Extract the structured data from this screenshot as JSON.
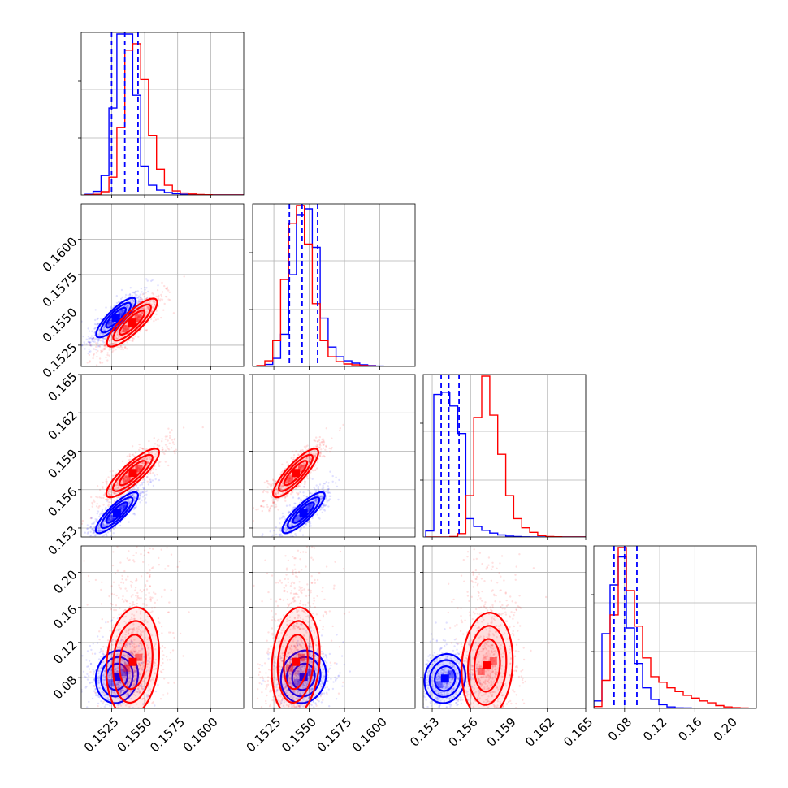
{
  "chart_data": {
    "type": "corner",
    "grid": true,
    "quantile_color": "#0000ff",
    "series": [
      {
        "color": "#0000ff"
      },
      {
        "color": "#ff0000"
      }
    ],
    "axes": [
      {
        "range": [
          0.1502,
          0.1625
        ],
        "ticks": [
          0.1525,
          0.155,
          0.1575,
          0.16
        ],
        "tick_labels": [
          "0.1525",
          "0.1550",
          "0.1575",
          "0.1600"
        ]
      },
      {
        "range": [
          0.151,
          0.1625
        ],
        "ticks": [
          0.1525,
          0.155,
          0.1575,
          0.16
        ],
        "tick_labels": [
          "0.1525",
          "0.1550",
          "0.1575",
          "0.1600"
        ]
      },
      {
        "range": [
          0.1523,
          0.165
        ],
        "ticks": [
          0.153,
          0.156,
          0.159,
          0.162,
          0.165
        ],
        "tick_labels": [
          "0.153",
          "0.156",
          "0.159",
          "0.162",
          "0.165"
        ]
      },
      {
        "range": [
          0.045,
          0.23
        ],
        "ticks": [
          0.08,
          0.12,
          0.16,
          0.2
        ],
        "tick_labels": [
          "0.08",
          "0.12",
          "0.16",
          "0.20"
        ]
      }
    ],
    "marginals": [
      {
        "quantiles": [
          0.1525,
          0.1535,
          0.1545
        ],
        "hist_range": [
          0.1505,
          0.1625
        ],
        "series": [
          [
            0.4,
            2.2,
            12,
            54,
            100,
            100,
            62,
            18,
            6,
            3,
            1.5,
            0.8,
            0.4,
            0.2,
            0.1,
            0.1,
            0.05,
            0.02,
            0.01,
            0.0
          ],
          [
            0.1,
            0.4,
            2.0,
            11,
            42,
            90,
            94,
            72,
            37,
            16,
            6,
            2.5,
            1.2,
            0.6,
            0.3,
            0.15,
            0.05,
            0.02,
            0.01,
            0.0
          ]
        ]
      },
      {
        "quantiles": [
          0.1536,
          0.1545,
          0.1556
        ],
        "hist_range": [
          0.1513,
          0.1625
        ],
        "series": [
          [
            0.2,
            1.2,
            5,
            20,
            57,
            94,
            98,
            74,
            30,
            12,
            6,
            3.5,
            2.0,
            1.0,
            0.5,
            0.2,
            0.1,
            0.05,
            0.02,
            0.0
          ],
          [
            0.5,
            3.5,
            16,
            54,
            89,
            100,
            76,
            39,
            16,
            6,
            3,
            1.5,
            1.0,
            0.5,
            0.3,
            0.1,
            0.05,
            0.02,
            0.01,
            0.0
          ]
        ]
      },
      {
        "quantiles": [
          0.1537,
          0.1543,
          0.1551
        ],
        "hist_range": [
          0.1525,
          0.165
        ],
        "series": [
          [
            2.6,
            62,
            63,
            57,
            45,
            8,
            4.6,
            2.9,
            1.7,
            0.9,
            0.4,
            0.2,
            0.08,
            0.03,
            0.01,
            0.0,
            0.0,
            0.0,
            0.0,
            0.0
          ],
          [
            0.0,
            0.0,
            0.0,
            0.2,
            1.5,
            18,
            52,
            70,
            53,
            36,
            18,
            8,
            4,
            2,
            0.6,
            0.2,
            0.1,
            0.05,
            0.02,
            0.0
          ]
        ]
      },
      {
        "quantiles": [
          0.068,
          0.08,
          0.094
        ],
        "hist_range": [
          0.045,
          0.23
        ],
        "series": [
          [
            4,
            40,
            66,
            81,
            43,
            24,
            11,
            4.8,
            2.0,
            0.8,
            0.3,
            0.2,
            0.1,
            0.0,
            0.0,
            0.0,
            0.0,
            0.0,
            0.0,
            0.0
          ],
          [
            1,
            15,
            50,
            86,
            63,
            44,
            27,
            17,
            14,
            11,
            9,
            7,
            5.5,
            4,
            3,
            1.5,
            0.8,
            0.4,
            0.2,
            0.1
          ]
        ]
      }
    ],
    "pairs": [
      {
        "row": 1,
        "col": 0,
        "series": [
          {
            "mean": [
              0.15283,
              0.15445
            ],
            "sd": [
              0.00075,
              0.0007
            ],
            "rho": 0.84,
            "points": 700
          },
          {
            "mean": [
              0.15405,
              0.1541
            ],
            "sd": [
              0.00095,
              0.00085
            ],
            "rho": 0.84,
            "points": 700
          }
        ]
      },
      {
        "row": 2,
        "col": 0,
        "series": [
          {
            "mean": [
              0.1529,
              0.1542
            ],
            "sd": [
              0.0008,
              0.0008
            ],
            "rho": 0.85,
            "points": 700
          },
          {
            "mean": [
              0.1541,
              0.1573
            ],
            "sd": [
              0.001,
              0.00095
            ],
            "rho": 0.85,
            "points": 700
          }
        ]
      },
      {
        "row": 2,
        "col": 1,
        "series": [
          {
            "mean": [
              0.1546,
              0.1542
            ],
            "sd": [
              0.00075,
              0.0008
            ],
            "rho": 0.85,
            "points": 700
          },
          {
            "mean": [
              0.15405,
              0.1573
            ],
            "sd": [
              0.0008,
              0.00095
            ],
            "rho": 0.85,
            "points": 700
          }
        ]
      },
      {
        "row": 3,
        "col": 0,
        "series": [
          {
            "mean": [
              0.1529,
              0.081
            ],
            "sd": [
              0.0008,
              0.015
            ],
            "rho": 0.1,
            "points": 650
          },
          {
            "mean": [
              0.1541,
              0.098
            ],
            "sd": [
              0.001,
              0.031
            ],
            "rho": 0.15,
            "points": 800
          }
        ]
      },
      {
        "row": 3,
        "col": 1,
        "series": [
          {
            "mean": [
              0.1546,
              0.081
            ],
            "sd": [
              0.0008,
              0.015
            ],
            "rho": 0.1,
            "points": 650
          },
          {
            "mean": [
              0.15405,
              0.098
            ],
            "sd": [
              0.00085,
              0.031
            ],
            "rho": 0.15,
            "points": 800
          }
        ]
      },
      {
        "row": 3,
        "col": 2,
        "series": [
          {
            "mean": [
              0.154,
              0.079
            ],
            "sd": [
              0.0008,
              0.014
            ],
            "rho": 0.1,
            "points": 650
          },
          {
            "mean": [
              0.1573,
              0.094
            ],
            "sd": [
              0.001,
              0.03
            ],
            "rho": 0.1,
            "points": 800
          }
        ]
      }
    ],
    "contour_levels": [
      0.5,
      1.0,
      1.5,
      2.0
    ]
  }
}
